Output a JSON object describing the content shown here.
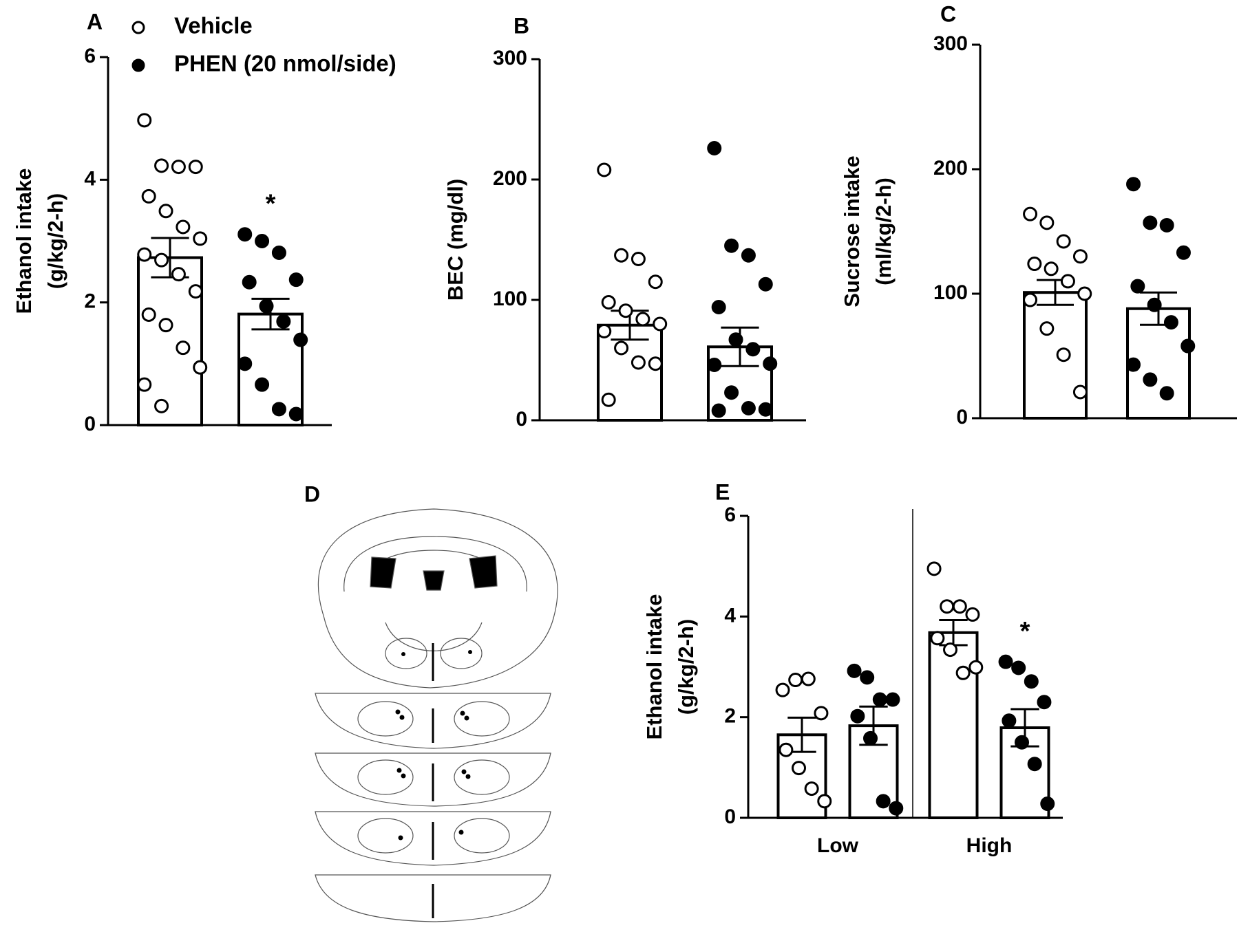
{
  "chart_data": [
    {
      "type": "bar",
      "panel": "A",
      "ylabel_lines": [
        "Ethanol intake",
        "(g/kg/2-h)"
      ],
      "legend": "top",
      "categories": [
        null
      ],
      "ylim": [
        0,
        6
      ],
      "yticks": [
        0,
        2,
        4,
        6
      ],
      "series": [
        {
          "name": "Vehicle",
          "marker": "open",
          "color": "#000000",
          "values": [
            2.73
          ],
          "errors": [
            0.32
          ],
          "points": [
            [
              4.97,
              4.23,
              4.21,
              4.21,
              3.73,
              3.49,
              3.23,
              3.04,
              2.78,
              2.69,
              2.46,
              2.18,
              1.8,
              1.63,
              1.26,
              0.94,
              0.66,
              0.31
            ]
          ]
        },
        {
          "name": "PHEN (20 nmol/side)",
          "marker": "filled",
          "color": "#000000",
          "values": [
            1.81
          ],
          "errors": [
            0.25
          ],
          "points": [
            [
              3.11,
              3.0,
              2.81,
              2.37,
              2.33,
              1.94,
              1.69,
              1.39,
              1.0,
              0.66,
              0.26,
              0.18
            ]
          ]
        }
      ],
      "annotations": [
        {
          "text": "*",
          "series": 1,
          "category": 0
        }
      ]
    },
    {
      "type": "bar",
      "panel": "B",
      "ylabel_lines": [
        "BEC (mg/dl)"
      ],
      "categories": [
        null
      ],
      "ylim": [
        0,
        300
      ],
      "yticks": [
        0,
        100,
        200,
        300
      ],
      "series": [
        {
          "marker": "open",
          "color": "#000000",
          "values": [
            79
          ],
          "errors": [
            12
          ],
          "points": [
            [
              208,
              137,
              134,
              115,
              98,
              91,
              84,
              80,
              74,
              60,
              48,
              47,
              17
            ]
          ]
        },
        {
          "marker": "filled",
          "color": "#000000",
          "values": [
            61
          ],
          "errors": [
            16
          ],
          "points": [
            [
              226,
              145,
              137,
              113,
              94,
              67,
              59,
              47,
              46,
              23,
              10,
              9,
              8
            ]
          ]
        }
      ]
    },
    {
      "type": "bar",
      "panel": "C",
      "ylabel_lines": [
        "Sucrose intake",
        "(ml/kg/2-h)"
      ],
      "categories": [
        null
      ],
      "ylim": [
        0,
        300
      ],
      "yticks": [
        0,
        100,
        200,
        300
      ],
      "series": [
        {
          "marker": "open",
          "color": "#000000",
          "values": [
            101
          ],
          "errors": [
            10
          ],
          "points": [
            [
              164,
              157,
              142,
              130,
              124,
              120,
              110,
              100,
              95,
              72,
              51,
              21
            ]
          ]
        },
        {
          "marker": "filled",
          "color": "#000000",
          "values": [
            88
          ],
          "errors": [
            13
          ],
          "points": [
            [
              188,
              157,
              155,
              133,
              106,
              91,
              77,
              58,
              43,
              31,
              20
            ]
          ]
        }
      ]
    },
    {
      "type": "bar",
      "panel": "E",
      "ylabel_lines": [
        "Ethanol intake",
        "(g/kg/2-h)"
      ],
      "divider": true,
      "categories": [
        "Low",
        "High"
      ],
      "ylim": [
        0,
        6
      ],
      "yticks": [
        0,
        2,
        4,
        6
      ],
      "series": [
        {
          "marker": "open",
          "color": "#000000",
          "values": [
            1.65,
            3.68
          ],
          "errors": [
            0.34,
            0.25
          ],
          "points": [
            [
              2.54,
              2.74,
              2.76,
              2.08,
              1.35,
              0.99,
              0.58,
              0.33
            ],
            [
              4.95,
              4.2,
              4.2,
              4.04,
              3.57,
              3.34,
              2.88,
              2.99
            ]
          ]
        },
        {
          "marker": "filled",
          "color": "#000000",
          "values": [
            1.83,
            1.79
          ],
          "errors": [
            0.38,
            0.37
          ],
          "points": [
            [
              2.92,
              2.79,
              2.35,
              2.35,
              2.02,
              1.58,
              0.33,
              0.19
            ],
            [
              3.1,
              2.98,
              2.71,
              2.3,
              1.93,
              1.5,
              1.07,
              0.28
            ]
          ]
        }
      ],
      "annotations": [
        {
          "text": "*",
          "series": 1,
          "category": 1
        }
      ]
    }
  ],
  "diagram": {
    "panel": "D"
  }
}
